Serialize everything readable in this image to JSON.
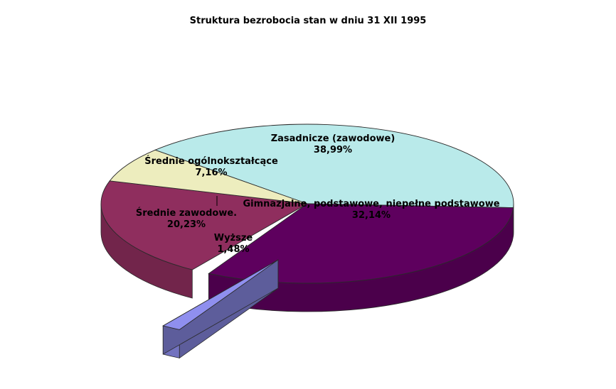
{
  "chart_data": {
    "type": "pie",
    "title": "Struktura bezrobocia stan w dniu 31 XII 1995",
    "slices": [
      {
        "name": "Zasadnicze (zawodowe)",
        "value_label": "38,99%",
        "value": 38.99,
        "color": "#B9EAEA",
        "exploded": false
      },
      {
        "name": "Gimnazjalne, podstawowe, niepełne podstawowe",
        "value_label": "32,14%",
        "value": 32.14,
        "color": "#5E005E",
        "exploded": false
      },
      {
        "name": "Wyższe",
        "value_label": "1,48%",
        "value": 1.48,
        "color": "#8F8FEF",
        "exploded": true
      },
      {
        "name": "Średnie zawodowe.",
        "value_label": "20,23%",
        "value": 20.23,
        "color": "#8F2E5E",
        "exploded": false
      },
      {
        "name": "Średnie ogólnokształcące",
        "value_label": "7,16%",
        "value": 7.16,
        "color": "#EDEDBE",
        "exploded": false
      }
    ]
  }
}
